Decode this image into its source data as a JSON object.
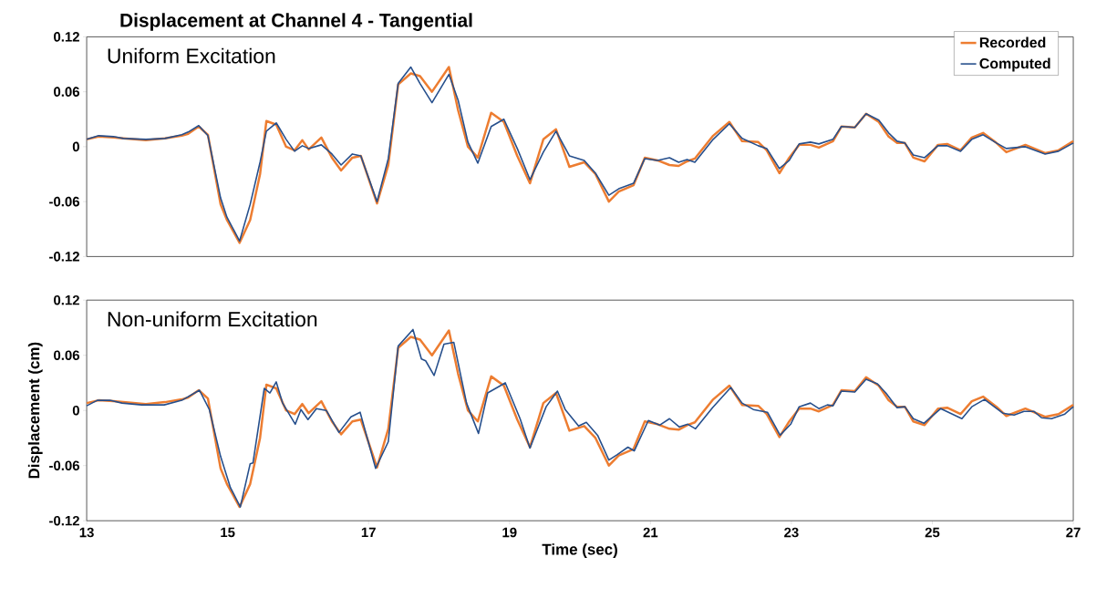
{
  "chart_data": [
    {
      "type": "line",
      "title": "Displacement at Channel 4 - Tangential",
      "subtitle": "Uniform Excitation",
      "xlim": [
        13,
        27
      ],
      "xticks": [
        13,
        15,
        17,
        19,
        21,
        23,
        25,
        27
      ],
      "ylim": [
        -0.12,
        0.12
      ],
      "yticks": [
        -0.12,
        -0.06,
        0,
        0.06,
        0.12
      ],
      "tick_labels": "y",
      "legend": "top right",
      "grid": false,
      "x": [
        13.0,
        13.17,
        13.38,
        13.52,
        13.84,
        14.11,
        14.35,
        14.44,
        14.59,
        14.72,
        14.9,
        14.99,
        15.17,
        15.32,
        15.46,
        15.55,
        15.69,
        15.83,
        15.95,
        16.06,
        16.15,
        16.33,
        16.48,
        16.61,
        16.77,
        16.89,
        17.12,
        17.28,
        17.42,
        17.6,
        17.73,
        17.9,
        18.14,
        18.27,
        18.41,
        18.55,
        18.74,
        18.92,
        19.11,
        19.29,
        19.48,
        19.66,
        19.85,
        20.06,
        20.22,
        20.41,
        20.55,
        20.76,
        20.92,
        21.1,
        21.27,
        21.4,
        21.52,
        21.63,
        21.89,
        22.12,
        22.3,
        22.53,
        22.65,
        22.83,
        22.97,
        23.11,
        23.27,
        23.39,
        23.59,
        23.71,
        23.9,
        24.06,
        24.24,
        24.38,
        24.5,
        24.61,
        24.73,
        24.89,
        25.08,
        25.21,
        25.4,
        25.56,
        25.72,
        25.91,
        26.05,
        26.32,
        26.6,
        26.79,
        27.0
      ],
      "series": [
        {
          "name": "Recorded",
          "color": "#ed7d31",
          "values": [
            0.008,
            0.011,
            0.01,
            0.009,
            0.007,
            0.009,
            0.012,
            0.014,
            0.022,
            0.013,
            -0.063,
            -0.08,
            -0.105,
            -0.08,
            -0.03,
            0.028,
            0.024,
            0.0,
            -0.004,
            0.007,
            -0.003,
            0.01,
            -0.012,
            -0.026,
            -0.012,
            -0.01,
            -0.062,
            -0.02,
            0.068,
            0.08,
            0.077,
            0.06,
            0.087,
            0.04,
            0.0,
            -0.012,
            0.037,
            0.027,
            -0.01,
            -0.04,
            0.008,
            0.019,
            -0.022,
            -0.017,
            -0.03,
            -0.06,
            -0.049,
            -0.042,
            -0.012,
            -0.015,
            -0.02,
            -0.021,
            -0.016,
            -0.013,
            0.012,
            0.027,
            0.006,
            0.005,
            -0.004,
            -0.029,
            -0.012,
            0.002,
            0.002,
            -0.001,
            0.006,
            0.022,
            0.021,
            0.036,
            0.027,
            0.011,
            0.004,
            0.004,
            -0.012,
            -0.016,
            0.002,
            0.003,
            -0.004,
            0.01,
            0.015,
            0.004,
            -0.006,
            0.002,
            -0.007,
            -0.004,
            0.006
          ]
        },
        {
          "name": "Computed",
          "color": "#264f8c",
          "values": [
            0.008,
            0.012,
            0.011,
            0.009,
            0.008,
            0.009,
            0.013,
            0.016,
            0.023,
            0.012,
            -0.056,
            -0.077,
            -0.103,
            -0.063,
            -0.017,
            0.017,
            0.026,
            0.008,
            -0.005,
            0.001,
            -0.002,
            0.002,
            -0.008,
            -0.02,
            -0.008,
            -0.01,
            -0.06,
            -0.013,
            0.069,
            0.087,
            0.069,
            0.048,
            0.079,
            0.051,
            0.005,
            -0.018,
            0.022,
            0.03,
            -0.002,
            -0.036,
            -0.006,
            0.017,
            -0.01,
            -0.015,
            -0.029,
            -0.053,
            -0.046,
            -0.04,
            -0.013,
            -0.015,
            -0.012,
            -0.017,
            -0.014,
            -0.017,
            0.008,
            0.025,
            0.009,
            0.001,
            -0.002,
            -0.024,
            -0.015,
            0.003,
            0.005,
            0.003,
            0.008,
            0.022,
            0.021,
            0.036,
            0.029,
            0.015,
            0.006,
            0.004,
            -0.009,
            -0.012,
            0.001,
            0.001,
            -0.005,
            0.008,
            0.013,
            0.004,
            -0.002,
            0.0,
            -0.008,
            -0.005,
            0.004
          ]
        }
      ]
    },
    {
      "type": "line",
      "subtitle": "Non-uniform Excitation",
      "xlabel": "Time (sec)",
      "ylabel": "Displacement (cm)",
      "xlim": [
        13,
        27
      ],
      "xticks": [
        13,
        15,
        17,
        19,
        21,
        23,
        25,
        27
      ],
      "ylim": [
        -0.12,
        0.12
      ],
      "yticks": [
        -0.12,
        -0.06,
        0,
        0.06,
        0.12
      ],
      "grid": false,
      "x": [
        13.0,
        13.17,
        13.38,
        13.52,
        13.84,
        14.11,
        14.35,
        14.44,
        14.59,
        14.72,
        14.9,
        14.99,
        15.17,
        15.32,
        15.46,
        15.55,
        15.69,
        15.83,
        15.95,
        16.06,
        16.15,
        16.33,
        16.48,
        16.61,
        16.77,
        16.89,
        17.12,
        17.28,
        17.42,
        17.6,
        17.73,
        17.9,
        18.14,
        18.27,
        18.41,
        18.55,
        18.74,
        18.92,
        19.11,
        19.29,
        19.48,
        19.66,
        19.85,
        20.06,
        20.22,
        20.41,
        20.55,
        20.76,
        20.92,
        21.1,
        21.27,
        21.4,
        21.52,
        21.63,
        21.89,
        22.12,
        22.3,
        22.53,
        22.65,
        22.83,
        22.97,
        23.11,
        23.27,
        23.39,
        23.59,
        23.71,
        23.9,
        24.06,
        24.24,
        24.38,
        24.5,
        24.61,
        24.73,
        24.89,
        25.08,
        25.21,
        25.4,
        25.56,
        25.72,
        25.91,
        26.05,
        26.32,
        26.6,
        26.79,
        27.0
      ],
      "series": [
        {
          "color": "#ed7d31",
          "values": [
            0.008,
            0.011,
            0.01,
            0.009,
            0.007,
            0.009,
            0.012,
            0.014,
            0.022,
            0.013,
            -0.063,
            -0.08,
            -0.105,
            -0.08,
            -0.03,
            0.028,
            0.024,
            0.0,
            -0.004,
            0.007,
            -0.003,
            0.01,
            -0.012,
            -0.026,
            -0.012,
            -0.01,
            -0.062,
            -0.02,
            0.068,
            0.08,
            0.077,
            0.06,
            0.087,
            0.04,
            0.0,
            -0.012,
            0.037,
            0.027,
            -0.01,
            -0.04,
            0.008,
            0.019,
            -0.022,
            -0.017,
            -0.03,
            -0.06,
            -0.049,
            -0.042,
            -0.012,
            -0.015,
            -0.02,
            -0.021,
            -0.016,
            -0.013,
            0.012,
            0.027,
            0.006,
            0.005,
            -0.004,
            -0.029,
            -0.012,
            0.002,
            0.002,
            -0.001,
            0.006,
            0.022,
            0.021,
            0.036,
            0.027,
            0.011,
            0.004,
            0.004,
            -0.012,
            -0.016,
            0.002,
            0.003,
            -0.004,
            0.01,
            0.015,
            0.004,
            -0.006,
            0.002,
            -0.007,
            -0.004,
            0.006
          ]
        },
        {
          "color": "#264f8c",
          "x": [
            13.0,
            13.15,
            13.33,
            13.5,
            13.78,
            14.1,
            14.35,
            14.6,
            14.74,
            14.9,
            15.04,
            15.18,
            15.32,
            15.36,
            15.52,
            15.6,
            15.69,
            15.78,
            15.96,
            16.04,
            16.14,
            16.26,
            16.4,
            16.58,
            16.75,
            16.88,
            17.1,
            17.28,
            17.42,
            17.63,
            17.75,
            17.81,
            17.93,
            18.07,
            18.21,
            18.39,
            18.56,
            18.69,
            18.94,
            19.15,
            19.29,
            19.52,
            19.68,
            19.79,
            19.98,
            20.09,
            20.25,
            20.41,
            20.53,
            20.68,
            20.77,
            20.97,
            21.13,
            21.27,
            21.41,
            21.53,
            21.64,
            21.88,
            22.14,
            22.3,
            22.46,
            22.66,
            22.84,
            22.99,
            23.11,
            23.27,
            23.39,
            23.51,
            23.59,
            23.71,
            23.9,
            24.06,
            24.22,
            24.34,
            24.5,
            24.61,
            24.73,
            24.88,
            25.12,
            25.42,
            25.56,
            25.74,
            26.0,
            26.16,
            26.3,
            26.44,
            26.55,
            26.69,
            26.88,
            27.0
          ],
          "values": [
            0.005,
            0.011,
            0.011,
            0.008,
            0.006,
            0.006,
            0.011,
            0.022,
            0.001,
            -0.05,
            -0.084,
            -0.105,
            -0.058,
            -0.057,
            0.024,
            0.019,
            0.031,
            0.008,
            -0.015,
            0.001,
            -0.01,
            0.002,
            0.0,
            -0.024,
            -0.007,
            -0.002,
            -0.063,
            -0.034,
            0.07,
            0.088,
            0.056,
            0.054,
            0.038,
            0.072,
            0.074,
            0.008,
            -0.025,
            0.019,
            0.03,
            -0.009,
            -0.041,
            0.004,
            0.021,
            0.001,
            -0.017,
            -0.013,
            -0.027,
            -0.054,
            -0.048,
            -0.04,
            -0.044,
            -0.011,
            -0.016,
            -0.009,
            -0.018,
            -0.015,
            -0.02,
            0.003,
            0.025,
            0.008,
            0.001,
            -0.002,
            -0.027,
            -0.015,
            0.004,
            0.008,
            0.002,
            0.006,
            0.005,
            0.021,
            0.02,
            0.034,
            0.029,
            0.019,
            0.003,
            0.004,
            -0.009,
            -0.014,
            0.002,
            -0.009,
            0.004,
            0.012,
            -0.003,
            -0.005,
            -0.001,
            -0.001,
            -0.008,
            -0.009,
            -0.004,
            0.004
          ]
        }
      ]
    }
  ]
}
